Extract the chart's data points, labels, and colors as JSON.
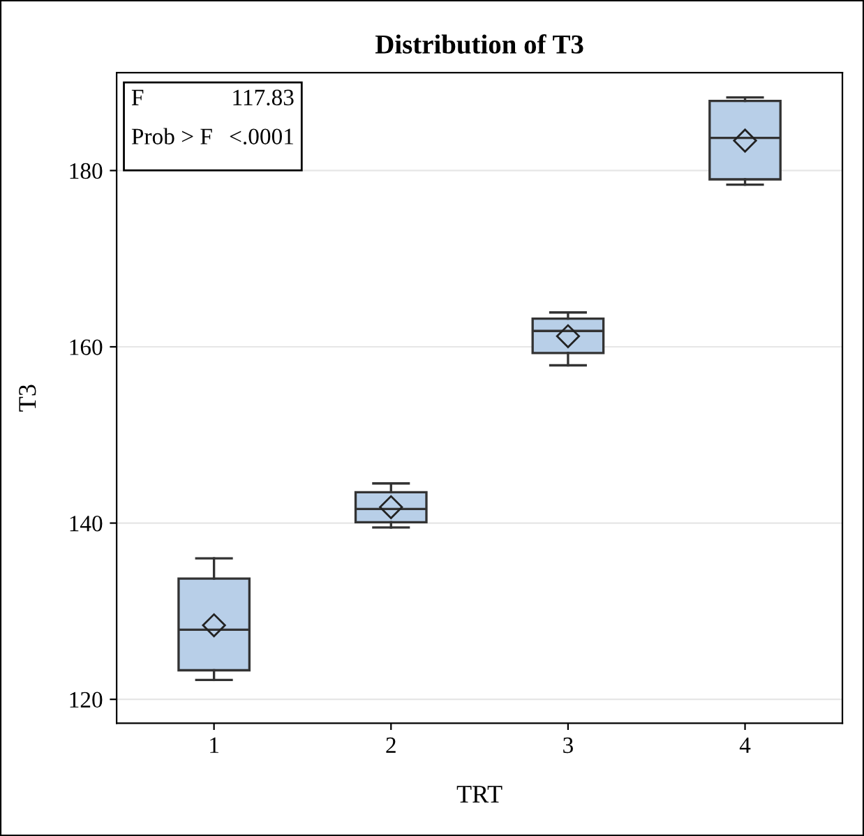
{
  "chart_data": {
    "type": "box",
    "title": "Distribution of T3",
    "xlabel": "TRT",
    "ylabel": "T3",
    "categories": [
      "1",
      "2",
      "3",
      "4"
    ],
    "series": [
      {
        "color": "#b8cfe8",
        "boxes": [
          {
            "low": 122.2,
            "q1": 123.3,
            "median": 127.9,
            "q3": 133.7,
            "high": 136.0,
            "mean": 128.4
          },
          {
            "low": 139.5,
            "q1": 140.1,
            "median": 141.6,
            "q3": 143.5,
            "high": 144.5,
            "mean": 141.8
          },
          {
            "low": 157.9,
            "q1": 159.3,
            "median": 161.8,
            "q3": 163.2,
            "high": 163.9,
            "mean": 161.2
          },
          {
            "low": 178.4,
            "q1": 179.0,
            "median": 183.7,
            "q3": 187.9,
            "high": 188.3,
            "mean": 183.4
          }
        ]
      }
    ],
    "ylim": [
      117.3,
      191.1
    ],
    "yticks": [
      120,
      140,
      160,
      180
    ],
    "grid": "y",
    "annotations": [
      "F",
      "117.83",
      "Prob > F",
      "<.0001"
    ]
  }
}
